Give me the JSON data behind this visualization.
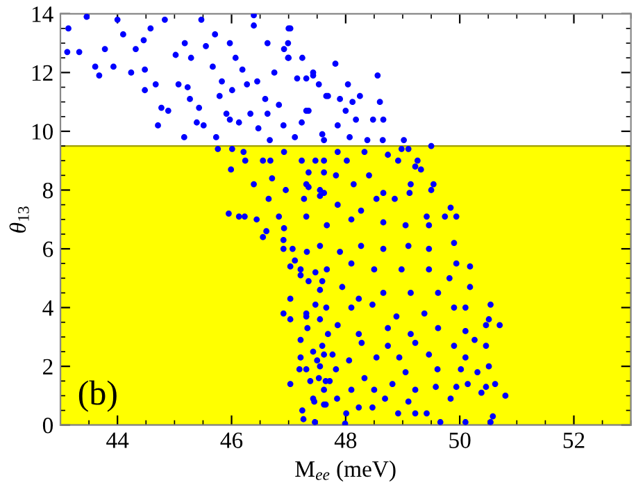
{
  "chart_data": {
    "type": "scatter",
    "xlabel": "M$_{ee}$ (meV)",
    "ylabel": "θ$_{13}$",
    "annotations": [
      "(b)"
    ],
    "xlim": [
      43,
      53
    ],
    "ylim": [
      0,
      14
    ],
    "xticks": [
      44,
      46,
      48,
      50,
      52
    ],
    "yticks": [
      0,
      2,
      4,
      6,
      8,
      10,
      12,
      14
    ],
    "grid": false,
    "marker": "circle",
    "bands": [
      {
        "axis": "y",
        "from": 0,
        "to": 9.5,
        "color": "#ffff00"
      }
    ],
    "series": [
      {
        "color": "#0000ff",
        "x": [
          43.14,
          43.12,
          43.33,
          43.46,
          43.61,
          43.68,
          43.78,
          43.93,
          44.0,
          44.1,
          44.24,
          44.32,
          44.46,
          44.48,
          44.58,
          44.48,
          44.67,
          44.77,
          44.71,
          44.89,
          44.83,
          45.02,
          45.07,
          45.17,
          45.18,
          45.23,
          45.27,
          45.29,
          45.43,
          45.39,
          45.47,
          45.55,
          45.51,
          45.67,
          45.71,
          45.73,
          45.76,
          45.79,
          45.83,
          45.91,
          45.97,
          45.97,
          45.99,
          46.01,
          46.01,
          46.07,
          46.13,
          46.19,
          46.21,
          46.24,
          46.27,
          46.33,
          46.39,
          46.39,
          46.45,
          46.47,
          46.59,
          46.63,
          46.63,
          46.67,
          46.68,
          46.71,
          46.75,
          46.83,
          46.91,
          46.92,
          46.95,
          46.99,
          47.03,
          47.11,
          47.15,
          47.31,
          47.35,
          47.43,
          47.55,
          47.62,
          47.66,
          46.39,
          46.23,
          45.95,
          47.0,
          46.99,
          46.92,
          47.0,
          47.24,
          47.82,
          47.31,
          47.43,
          47.53,
          48.04,
          48.56,
          48.25,
          47.69,
          47.9,
          48.6,
          47.35,
          48.12,
          48.0,
          48.48,
          48.66,
          48.18,
          47.86,
          47.23,
          47.59,
          48.07,
          48.38,
          48.65,
          49.02,
          49.5,
          49.1,
          48.98,
          48.74,
          48.92,
          49.26,
          49.22,
          49.32,
          48.41,
          49.14,
          49.54,
          49.5,
          49.12,
          48.86,
          48.66,
          48.54,
          49.84,
          49.74,
          49.94,
          49.42,
          46.13,
          46.44,
          46.61,
          46.55,
          46.91,
          46.92,
          46.91,
          47.07,
          47.11,
          47.03,
          47.32,
          47.21,
          47.35,
          47.21,
          47.47,
          47.59,
          47.55,
          47.03,
          46.91,
          47.03,
          47.31,
          47.31,
          47.55,
          47.47,
          47.33,
          47.21,
          47.43,
          47.21,
          47.5,
          47.62,
          47.19,
          47.31,
          47.55,
          47.03,
          47.38,
          47.62,
          47.45,
          47.24,
          47.26,
          47.46,
          47.62,
          47.72,
          47.77,
          47.69,
          47.66,
          47.43,
          47.65,
          47.85,
          48.01,
          47.99,
          48.23,
          48.47,
          48.69,
          48.92,
          49.1,
          49.22,
          49.42,
          49.66,
          49.84,
          50.1,
          50.58,
          50.54,
          50.46,
          50.62,
          50.8,
          50.38,
          50.14,
          49.94,
          49.58,
          49.22,
          48.82,
          48.5,
          48.1,
          47.65,
          47.53,
          48.33,
          49.05,
          49.61,
          50.02,
          50.31,
          50.51,
          47.83,
          48.06,
          48.54,
          48.94,
          49.46,
          50.1,
          50.46,
          50.26,
          49.9,
          49.22,
          48.74,
          48.28,
          47.59,
          50.46,
          50.7,
          50.51,
          50.1,
          49.62,
          49.14,
          48.74,
          48.23,
          47.86,
          48.1,
          48.47,
          48.89,
          49.38,
          49.9,
          50.1,
          50.54,
          50.18,
          49.62,
          49.14,
          48.66,
          48.23,
          47.94,
          50.18,
          49.94,
          49.82,
          49.46,
          48.98,
          48.5,
          48.1,
          47.67,
          49.9,
          49.46,
          49.1,
          48.66,
          48.27,
          47.9,
          47.55,
          49.46,
          49.05,
          48.66,
          48.1,
          47.67,
          47.31,
          46.65,
          46.83,
          47.27,
          47.55,
          47.35,
          47.62,
          47.23,
          47.62,
          46.55,
          47.47,
          47.83,
          48.02,
          48.14,
          47.62,
          47.86,
          47.31,
          48.27,
          47.86,
          48.33
        ],
        "values": [
          13.5,
          12.7,
          12.7,
          13.9,
          12.2,
          11.9,
          12.8,
          12.2,
          13.8,
          13.3,
          12.0,
          12.8,
          13.1,
          12.1,
          13.5,
          11.4,
          11.6,
          10.8,
          10.2,
          10.7,
          13.8,
          12.6,
          11.6,
          9.8,
          13.0,
          11.5,
          11.1,
          12.5,
          10.8,
          10.3,
          13.8,
          12.9,
          10.2,
          12.2,
          13.3,
          9.8,
          9.4,
          11.2,
          11.7,
          10.6,
          13.0,
          10.4,
          8.7,
          9.4,
          11.4,
          12.5,
          10.3,
          12.1,
          9.3,
          9.0,
          11.6,
          10.6,
          13.6,
          13.95,
          11.7,
          10.1,
          11.1,
          10.6,
          13.0,
          9.7,
          9.0,
          8.4,
          12.0,
          10.9,
          10.2,
          9.3,
          8.0,
          12.5,
          13.5,
          9.8,
          11.8,
          10.7,
          8.6,
          12.0,
          8.0,
          9.7,
          11.2,
          8.2,
          7.1,
          7.2,
          13.5,
          13.0,
          12.8,
          12.5,
          12.5,
          12.3,
          11.8,
          11.9,
          11.6,
          11.6,
          11.9,
          11.2,
          11.2,
          11.1,
          11.0,
          10.7,
          11.0,
          10.7,
          10.4,
          10.4,
          10.4,
          10.2,
          10.3,
          9.9,
          9.8,
          9.7,
          9.7,
          9.7,
          9.5,
          9.4,
          9.4,
          9.2,
          9.0,
          9.0,
          8.8,
          8.7,
          8.5,
          8.2,
          8.2,
          8.0,
          7.9,
          7.7,
          7.9,
          7.7,
          7.4,
          7.1,
          7.1,
          7.1,
          7.1,
          7.0,
          6.6,
          6.4,
          6.3,
          6.7,
          6.0,
          6.0,
          5.6,
          5.4,
          5.9,
          5.3,
          4.9,
          5.1,
          5.2,
          4.9,
          4.6,
          4.3,
          3.8,
          3.6,
          3.8,
          3.7,
          3.6,
          4.1,
          3.3,
          2.9,
          2.5,
          2.3,
          2.2,
          2.4,
          1.9,
          1.9,
          2.0,
          1.4,
          1.5,
          1.2,
          0.8,
          0.5,
          0.2,
          0.1,
          0.7,
          1.5,
          2.4,
          3.1,
          4.0,
          0.9,
          0.7,
          0.9,
          0.4,
          0.05,
          0.6,
          0.6,
          0.9,
          0.4,
          0.8,
          0.4,
          0.4,
          0.1,
          0.9,
          0.1,
          0.3,
          0.1,
          1.3,
          1.4,
          1.0,
          1.1,
          1.4,
          1.3,
          1.3,
          1.2,
          1.4,
          1.2,
          1.2,
          1.5,
          1.6,
          1.6,
          1.8,
          1.9,
          1.9,
          1.8,
          2.0,
          1.9,
          2.2,
          2.3,
          2.3,
          2.4,
          2.3,
          2.7,
          2.9,
          2.7,
          2.8,
          2.7,
          2.8,
          2.7,
          3.4,
          3.4,
          3.6,
          3.2,
          3.3,
          3.1,
          3.3,
          3.1,
          3.4,
          4.0,
          4.1,
          3.7,
          3.8,
          4.0,
          4.0,
          4.1,
          4.7,
          4.5,
          4.5,
          4.5,
          4.3,
          4.7,
          5.4,
          5.5,
          5.0,
          5.3,
          5.3,
          5.3,
          5.5,
          5.3,
          6.2,
          6.0,
          6.1,
          6.0,
          6.1,
          5.9,
          6.1,
          6.8,
          6.8,
          6.9,
          7.0,
          6.8,
          7.1,
          7.7,
          7.1,
          7.7,
          7.8,
          8.1,
          8.6,
          9.0,
          9.0,
          9.0,
          9.0,
          8.5,
          9.0,
          8.2,
          7.9,
          7.5,
          8.2,
          7.3,
          9.3,
          9.3
        ]
      }
    ]
  }
}
